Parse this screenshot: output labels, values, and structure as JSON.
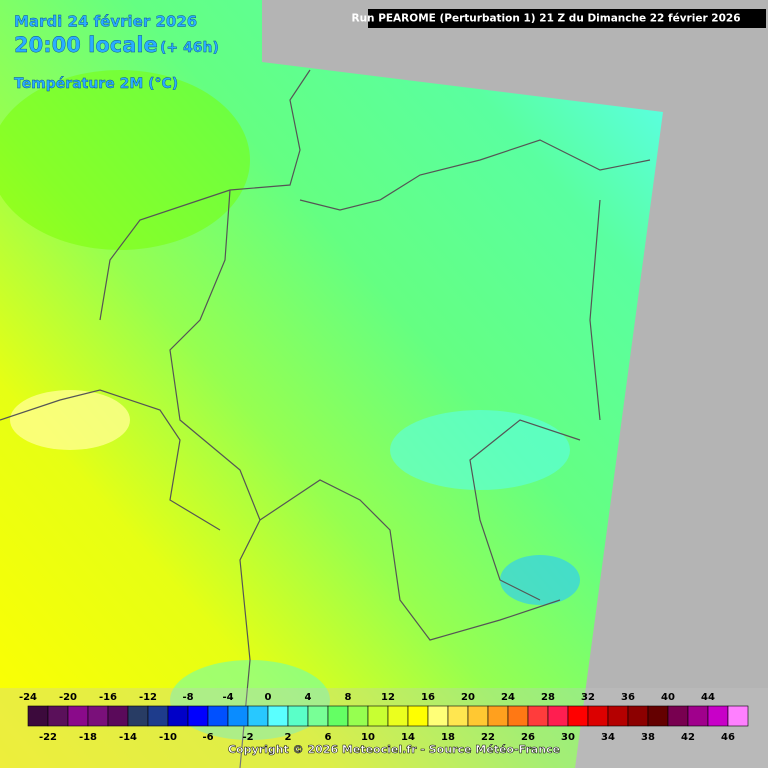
{
  "header": {
    "date": "Mardi 24 février 2026",
    "time": "20:00 locale",
    "lead": "(+ 46h)",
    "parameter": "Température 2M (°C)",
    "run": "Run PEAROME (Perturbation 1) 21 Z du Dimanche 22 février 2026"
  },
  "legend": {
    "labels": [
      -24,
      -22,
      -20,
      -18,
      -16,
      -14,
      -12,
      -10,
      -8,
      -6,
      -4,
      -2,
      0,
      2,
      4,
      6,
      8,
      10,
      12,
      14,
      16,
      18,
      20,
      22,
      24,
      26,
      28,
      30,
      32,
      34,
      36,
      38,
      40,
      42,
      44,
      46
    ],
    "colors": [
      "#3c0a3c",
      "#5a105a",
      "#8a0a8a",
      "#7a107a",
      "#5a0a5a",
      "#283c64",
      "#1e3c8c",
      "#0000c8",
      "#0000ff",
      "#0050ff",
      "#0a8cff",
      "#28c8ff",
      "#5affff",
      "#5affc8",
      "#78ff96",
      "#64ff64",
      "#96ff50",
      "#c8ff32",
      "#ebff1e",
      "#ffff00",
      "#ffff78",
      "#ffe650",
      "#ffc832",
      "#ffa01e",
      "#ff7814",
      "#ff3c3c",
      "#ff1e50",
      "#ff0000",
      "#dc0000",
      "#b40000",
      "#8c0000",
      "#640000",
      "#780050",
      "#a0008c",
      "#c800c8",
      "#ff80ff"
    ]
  },
  "footer": {
    "copyright": "Copyright © 2026 Meteociel.fr - Source Météo-France"
  }
}
